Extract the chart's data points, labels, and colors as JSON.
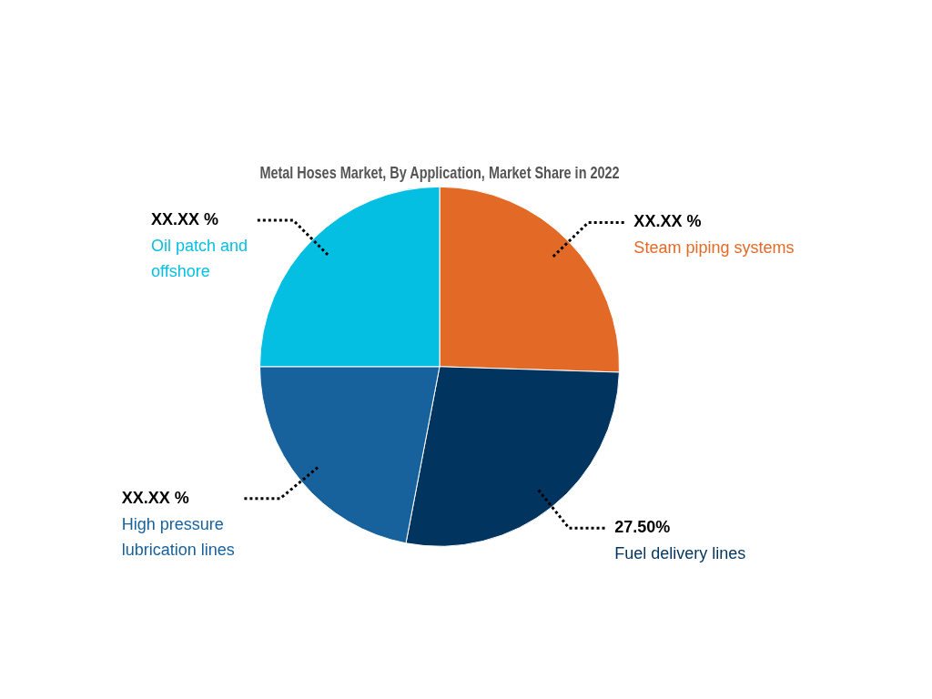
{
  "chart_data": {
    "type": "pie",
    "title": "Metal Hoses Market, By Application, Market Share in 2022",
    "categories": [
      "Steam piping systems",
      "Fuel delivery lines",
      "High pressure lubrication lines",
      "Oil patch and offshore"
    ],
    "values": [
      25.5,
      27.5,
      22,
      25
    ],
    "colors": [
      "#e36a26",
      "#01345f",
      "#17629c",
      "#05bfe3"
    ],
    "value_labels": [
      "XX.XX %",
      "27.50%",
      "XX.XX %",
      "XX.XX %"
    ],
    "legend": false
  }
}
